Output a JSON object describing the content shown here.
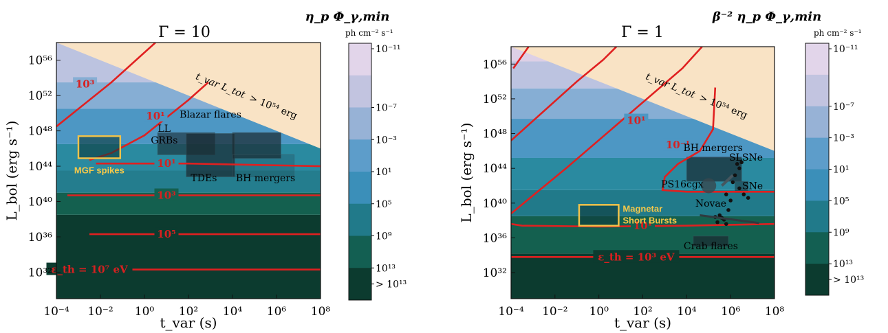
{
  "chart_data": [
    {
      "type": "heatmap",
      "title": "Γ = 10",
      "xlabel": "t_var (s)",
      "ylabel": "L_bol (erg s⁻¹)",
      "xscale": "log",
      "yscale": "log",
      "x_tick_exponents": [
        -4,
        -2,
        0,
        2,
        4,
        6,
        8
      ],
      "y_tick_exponents": [
        32,
        36,
        40,
        44,
        48,
        52,
        56
      ],
      "xlim_exp": [
        -4,
        8
      ],
      "ylim_exp": [
        29,
        58
      ],
      "forbidden_label_main": "t_var L_tot",
      "forbidden_label_tail": "> 10⁵⁴ erg",
      "forbidden_product_exp": 54,
      "bands": [
        {
          "from": 29,
          "to": 38.5,
          "color": "#0c3b2f"
        },
        {
          "from": 38.5,
          "to": 41,
          "color": "#14604f"
        },
        {
          "from": 41,
          "to": 43.5,
          "color": "#247d8e"
        },
        {
          "from": 43.5,
          "to": 46.5,
          "color": "#2a8aa0"
        },
        {
          "from": 46.5,
          "to": 50.5,
          "color": "#4d97c4"
        },
        {
          "from": 50.5,
          "to": 53.5,
          "color": "#86aed4"
        },
        {
          "from": 53.5,
          "to": 58,
          "color": "#bcc3e0"
        }
      ],
      "contours": [
        {
          "label": "ε_th = 10⁷ eV",
          "points": [
            [
              -4,
              32.3
            ],
            [
              8,
              32.3
            ]
          ],
          "label_at": [
            -2.5,
            32.3
          ]
        },
        {
          "label": "10⁵",
          "points": [
            [
              -2.5,
              36.3
            ],
            [
              8,
              36.3
            ]
          ],
          "label_at": [
            1,
            36.3
          ]
        },
        {
          "label": "10³",
          "points": [
            [
              -3.5,
              40.7
            ],
            [
              8,
              40.7
            ]
          ],
          "label_at": [
            1,
            40.7
          ]
        },
        {
          "label": "10¹",
          "points": [
            [
              -2.2,
              44.3
            ],
            [
              0,
              44.3
            ],
            [
              2,
              44.3
            ],
            [
              8,
              44.0
            ]
          ],
          "label_at": [
            1,
            44.3
          ]
        },
        {
          "label": "10¹",
          "points": [
            [
              -2.5,
              44.7
            ],
            [
              -1.5,
              45.5
            ],
            [
              0,
              47.5
            ],
            [
              2,
              51.5
            ],
            [
              2.9,
              53.5
            ]
          ],
          "label_at": [
            0.5,
            49.7
          ]
        },
        {
          "label": "10³",
          "points": [
            [
              -4,
              48.5
            ],
            [
              -3,
              50.5
            ],
            [
              -1.5,
              53.5
            ],
            [
              0.5,
              58
            ]
          ],
          "label_at": [
            -2.7,
            53.3
          ]
        }
      ],
      "regions": [
        {
          "label": "LL GRBs",
          "x": [
            0.6,
            3.2
          ],
          "y": [
            45.3,
            47.8
          ],
          "alpha": 0.6
        },
        {
          "label": "Blazar flares",
          "x": [
            4,
            6.2
          ],
          "y": [
            44.9,
            47.8
          ],
          "alpha": 0.7
        },
        {
          "label": "TDEs",
          "x": [
            1.9,
            4.1
          ],
          "y": [
            42.8,
            47.7
          ],
          "alpha": 0.7
        },
        {
          "label": "BH mergers",
          "x": [
            4,
            6.8
          ],
          "y": [
            42.8,
            45.3
          ],
          "alpha": 0.2
        }
      ],
      "badges": [
        {
          "label": "MGF spikes",
          "x": [
            -3,
            -1.1
          ],
          "y": [
            44.9,
            47.4
          ]
        }
      ],
      "colorbar": {
        "title": "η_p Φ_γ,min",
        "unit": "ph cm⁻² s⁻¹",
        "ticks": [
          "10⁻¹¹",
          "10⁻⁷",
          "10⁻³",
          "10¹",
          "10⁵",
          "10⁹",
          "10¹³",
          "> 10¹³"
        ],
        "colors": [
          "#e2d5ea",
          "#c2c4e0",
          "#97b2d6",
          "#5d9dca",
          "#3b8fb9",
          "#217a8a",
          "#135f52",
          "#0c3b2f"
        ]
      }
    },
    {
      "type": "heatmap",
      "title": "Γ = 1",
      "xlabel": "t_var (s)",
      "ylabel": "L_bol (erg s⁻¹)",
      "xscale": "log",
      "yscale": "log",
      "x_tick_exponents": [
        -4,
        -2,
        0,
        2,
        4,
        6,
        8
      ],
      "y_tick_exponents": [
        32,
        36,
        40,
        44,
        48,
        52,
        56
      ],
      "xlim_exp": [
        -4,
        8
      ],
      "ylim_exp": [
        29,
        58
      ],
      "forbidden_label_main": "t_var L_tot",
      "forbidden_label_tail": "> 10⁵⁴ erg",
      "forbidden_product_exp": 54,
      "bands": [
        {
          "from": 29,
          "to": 34.2,
          "color": "#0c3b2f"
        },
        {
          "from": 34.2,
          "to": 38.5,
          "color": "#14604f"
        },
        {
          "from": 38.5,
          "to": 41.5,
          "color": "#217a8a"
        },
        {
          "from": 41.5,
          "to": 45.2,
          "color": "#2a8aa0"
        },
        {
          "from": 45.2,
          "to": 49.7,
          "color": "#4d97c4"
        },
        {
          "from": 49.7,
          "to": 53.2,
          "color": "#86aed4"
        },
        {
          "from": 53.2,
          "to": 56.3,
          "color": "#bcc3e0"
        },
        {
          "from": 56.3,
          "to": 58,
          "color": "#ddd0e6"
        }
      ],
      "contours": [
        {
          "label": "ε_th = 10³ eV",
          "points": [
            [
              -4,
              33.8
            ],
            [
              8,
              33.8
            ]
          ],
          "label_at": [
            1.7,
            33.8
          ]
        },
        {
          "label": "10¹",
          "points": [
            [
              -4,
              37.6
            ],
            [
              -3.5,
              37.4
            ],
            [
              0,
              37.3
            ],
            [
              4,
              37.4
            ],
            [
              8,
              37.6
            ]
          ],
          "label_at": [
            2,
            37.4
          ]
        },
        {
          "label": "10⁻¹",
          "points": [
            [
              8,
              41.3
            ],
            [
              4,
              41.3
            ],
            [
              2.9,
              41.5
            ],
            [
              3,
              43
            ],
            [
              3.6,
              44.5
            ],
            [
              4.6,
              46
            ],
            [
              5.2,
              48.5
            ],
            [
              5.3,
              53.3
            ]
          ],
          "label_at": [
            3.6,
            46.7
          ]
        },
        {
          "label": "10¹",
          "points": [
            [
              -4,
              38.8
            ],
            [
              -1.5,
              44
            ],
            [
              1.5,
              50.5
            ],
            [
              3.8,
              55.5
            ],
            [
              4.7,
              58
            ]
          ],
          "label_at": [
            1.7,
            49.5
          ]
        },
        {
          "label": "",
          "points": [
            [
              -4,
              47.2
            ],
            [
              -2.5,
              50.6
            ],
            [
              -1,
              54
            ],
            [
              0.2,
              56.5
            ],
            [
              0.8,
              58
            ]
          ],
          "label_at": [
            0,
            0
          ]
        },
        {
          "label": "",
          "points": [
            [
              -3.9,
              55.5
            ],
            [
              -3.2,
              58
            ]
          ],
          "label_at": [
            0,
            0
          ]
        }
      ],
      "regions": [
        {
          "label": "BH mergers",
          "x": [
            4,
            6.5
          ],
          "y": [
            42.5,
            45.3
          ],
          "alpha": 0.7
        },
        {
          "label": "SNe",
          "x": [
            6.2,
            6.8
          ],
          "y": [
            41.2,
            42.5
          ],
          "alpha": 0.5
        },
        {
          "label": "Crab flares",
          "x": [
            4.3,
            5.9
          ],
          "y": [
            35,
            36.2
          ],
          "alpha": 0.7
        }
      ],
      "points_labels": [
        "SLSNe",
        "PS16cgx",
        "Novae"
      ],
      "badges": [
        {
          "label": "Magnetar\nShort Bursts",
          "x": [
            -0.9,
            0.9
          ],
          "y": [
            37.4,
            39.8
          ]
        }
      ],
      "colorbar": {
        "title": "β⁻² η_p Φ_γ,min",
        "unit": "ph cm⁻² s⁻¹",
        "ticks": [
          "10⁻¹¹",
          "10⁻⁷",
          "10⁻³",
          "10¹",
          "10⁵",
          "10⁹",
          "10¹³",
          "> 10¹³"
        ],
        "colors": [
          "#e2d5ea",
          "#c2c4e0",
          "#97b2d6",
          "#5d9dca",
          "#3b8fb9",
          "#217a8a",
          "#135f52",
          "#0c3b2f"
        ]
      }
    }
  ]
}
